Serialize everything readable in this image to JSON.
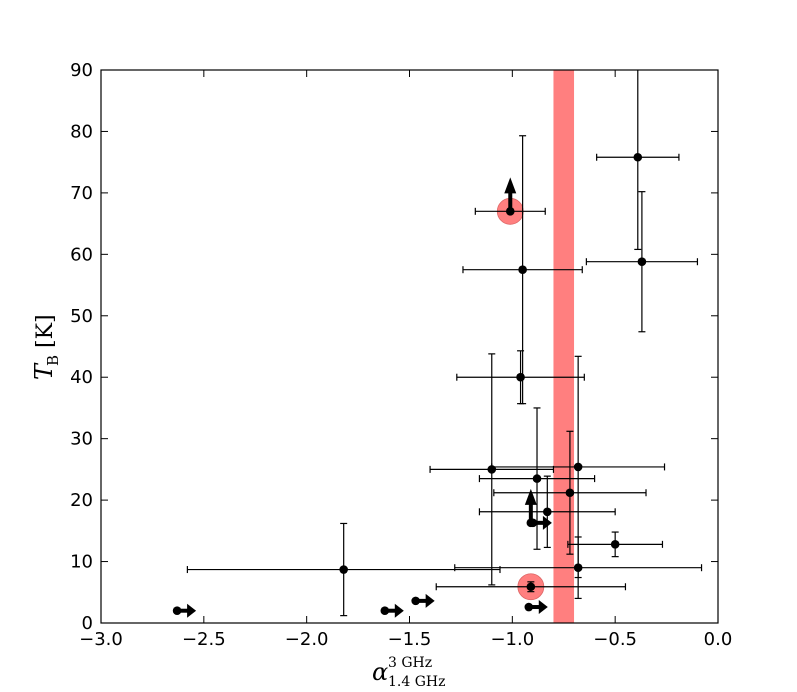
{
  "chart_data": {
    "type": "scatter",
    "title": "",
    "xlabel": {
      "base": "α",
      "sup": "3 GHz",
      "sub": "1.4 GHz"
    },
    "ylabel": {
      "base": "T",
      "sub": "B",
      "unit": "[K]"
    },
    "xlim": [
      -3.0,
      0.0
    ],
    "ylim": [
      0,
      90
    ],
    "xticks": [
      -3.0,
      -2.5,
      -2.0,
      -1.5,
      -1.0,
      -0.5,
      0.0
    ],
    "xtick_labels": [
      "−3.0",
      "−2.5",
      "−2.0",
      "−1.5",
      "−1.0",
      "−0.5",
      "0.0"
    ],
    "yticks": [
      0,
      10,
      20,
      30,
      40,
      50,
      60,
      70,
      80,
      90
    ],
    "ytick_labels": [
      "0",
      "10",
      "20",
      "30",
      "40",
      "50",
      "60",
      "70",
      "80",
      "90"
    ],
    "grid": false,
    "band": {
      "x_range": [
        -0.8,
        -0.7
      ],
      "color": "#ff7f7f"
    },
    "points": [
      {
        "x": -0.39,
        "y": 75.8,
        "xerr": [
          0.2,
          0.2
        ],
        "yerr": [
          15.0,
          15.0
        ]
      },
      {
        "x": -0.37,
        "y": 58.8,
        "xerr": [
          0.27,
          0.27
        ],
        "yerr": [
          11.4,
          11.4
        ]
      },
      {
        "x": -0.95,
        "y": 57.5,
        "xerr": [
          0.29,
          0.29
        ],
        "yerr": [
          21.8,
          21.8
        ]
      },
      {
        "x": -0.96,
        "y": 40.0,
        "xerr": [
          0.31,
          0.31
        ],
        "yerr": [
          4.3,
          4.3
        ]
      },
      {
        "x": -1.1,
        "y": 25.0,
        "xerr": [
          0.3,
          0.3
        ],
        "yerr": [
          18.8,
          18.8
        ]
      },
      {
        "x": -0.68,
        "y": 25.4,
        "xerr": [
          0.42,
          0.42
        ],
        "yerr": [
          18.0,
          18.0
        ]
      },
      {
        "x": -0.88,
        "y": 23.5,
        "xerr": [
          0.28,
          0.28
        ],
        "yerr": [
          11.5,
          11.5
        ]
      },
      {
        "x": -0.72,
        "y": 21.2,
        "xerr": [
          0.37,
          0.37
        ],
        "yerr": [
          10.0,
          10.0
        ]
      },
      {
        "x": -0.83,
        "y": 18.1,
        "xerr": [
          0.33,
          0.33
        ],
        "yerr": [
          5.8,
          5.8
        ]
      },
      {
        "x": -0.5,
        "y": 12.8,
        "xerr": [
          0.23,
          0.23
        ],
        "yerr": [
          2.0,
          2.0
        ]
      },
      {
        "x": -1.82,
        "y": 8.7,
        "xerr": [
          0.76,
          0.76
        ],
        "yerr": [
          7.5,
          7.5
        ]
      },
      {
        "x": -0.68,
        "y": 9.0,
        "xerr": [
          0.6,
          0.6
        ],
        "yerr": [
          5.0,
          5.0
        ]
      },
      {
        "x": -0.91,
        "y": 5.9,
        "xerr": [
          0.46,
          0.46
        ],
        "yerr": [
          0.8,
          0.8
        ]
      },
      {
        "x": -1.01,
        "y": 67.0,
        "xerr": [
          0.17,
          0.17
        ],
        "yerr": [
          0,
          0
        ]
      }
    ],
    "limits_up": [
      {
        "x": -1.01,
        "y": 67.0
      },
      {
        "x": -0.91,
        "y": 16.3
      }
    ],
    "limits_right": [
      {
        "x": -0.9,
        "y": 16.3
      },
      {
        "x": -2.63,
        "y": 2.0
      },
      {
        "x": -1.62,
        "y": 2.0
      },
      {
        "x": -1.47,
        "y": 3.6
      },
      {
        "x": -0.92,
        "y": 2.6
      }
    ],
    "highlighted": [
      {
        "x": -1.01,
        "y": 67.0
      },
      {
        "x": -0.91,
        "y": 5.9
      }
    ],
    "colors": {
      "points": "#000000",
      "highlight": "#ff7f7f",
      "band": "#ff7f7f"
    }
  }
}
